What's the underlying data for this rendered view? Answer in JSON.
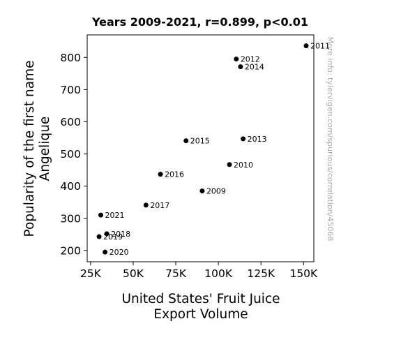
{
  "chart_data": {
    "type": "scatter",
    "title": "Years 2009-2021, r=0.899, p<0.01",
    "xlabel": [
      "United States' Fruit Juice",
      "Export Volume"
    ],
    "ylabel": [
      "Popularity of the first name",
      "Angelique"
    ],
    "xlim": [
      23000,
      156000
    ],
    "ylim": [
      165,
      870
    ],
    "xticks": [
      {
        "value": 25000,
        "label": "25K"
      },
      {
        "value": 50000,
        "label": "50K"
      },
      {
        "value": 75000,
        "label": "75K"
      },
      {
        "value": 100000,
        "label": "100K"
      },
      {
        "value": 125000,
        "label": "125K"
      },
      {
        "value": 150000,
        "label": "150K"
      }
    ],
    "yticks": [
      {
        "value": 200,
        "label": "200"
      },
      {
        "value": 300,
        "label": "300"
      },
      {
        "value": 400,
        "label": "400"
      },
      {
        "value": 500,
        "label": "500"
      },
      {
        "value": 600,
        "label": "600"
      },
      {
        "value": 700,
        "label": "700"
      },
      {
        "value": 800,
        "label": "800"
      }
    ],
    "points": [
      {
        "label": "2009",
        "x": 90500,
        "y": 385
      },
      {
        "label": "2010",
        "x": 106500,
        "y": 467
      },
      {
        "label": "2011",
        "x": 151500,
        "y": 836
      },
      {
        "label": "2012",
        "x": 110500,
        "y": 795
      },
      {
        "label": "2013",
        "x": 114500,
        "y": 547
      },
      {
        "label": "2014",
        "x": 113000,
        "y": 771
      },
      {
        "label": "2015",
        "x": 81000,
        "y": 541
      },
      {
        "label": "2016",
        "x": 66000,
        "y": 437
      },
      {
        "label": "2017",
        "x": 57500,
        "y": 341
      },
      {
        "label": "2018",
        "x": 34500,
        "y": 252
      },
      {
        "label": "2019",
        "x": 30000,
        "y": 243
      },
      {
        "label": "2020",
        "x": 33500,
        "y": 195
      },
      {
        "label": "2021",
        "x": 31000,
        "y": 310
      }
    ],
    "grid": false,
    "marker_color": "#000000"
  },
  "watermark": "More info: tylervigen.com/spurious/correlation/45068"
}
